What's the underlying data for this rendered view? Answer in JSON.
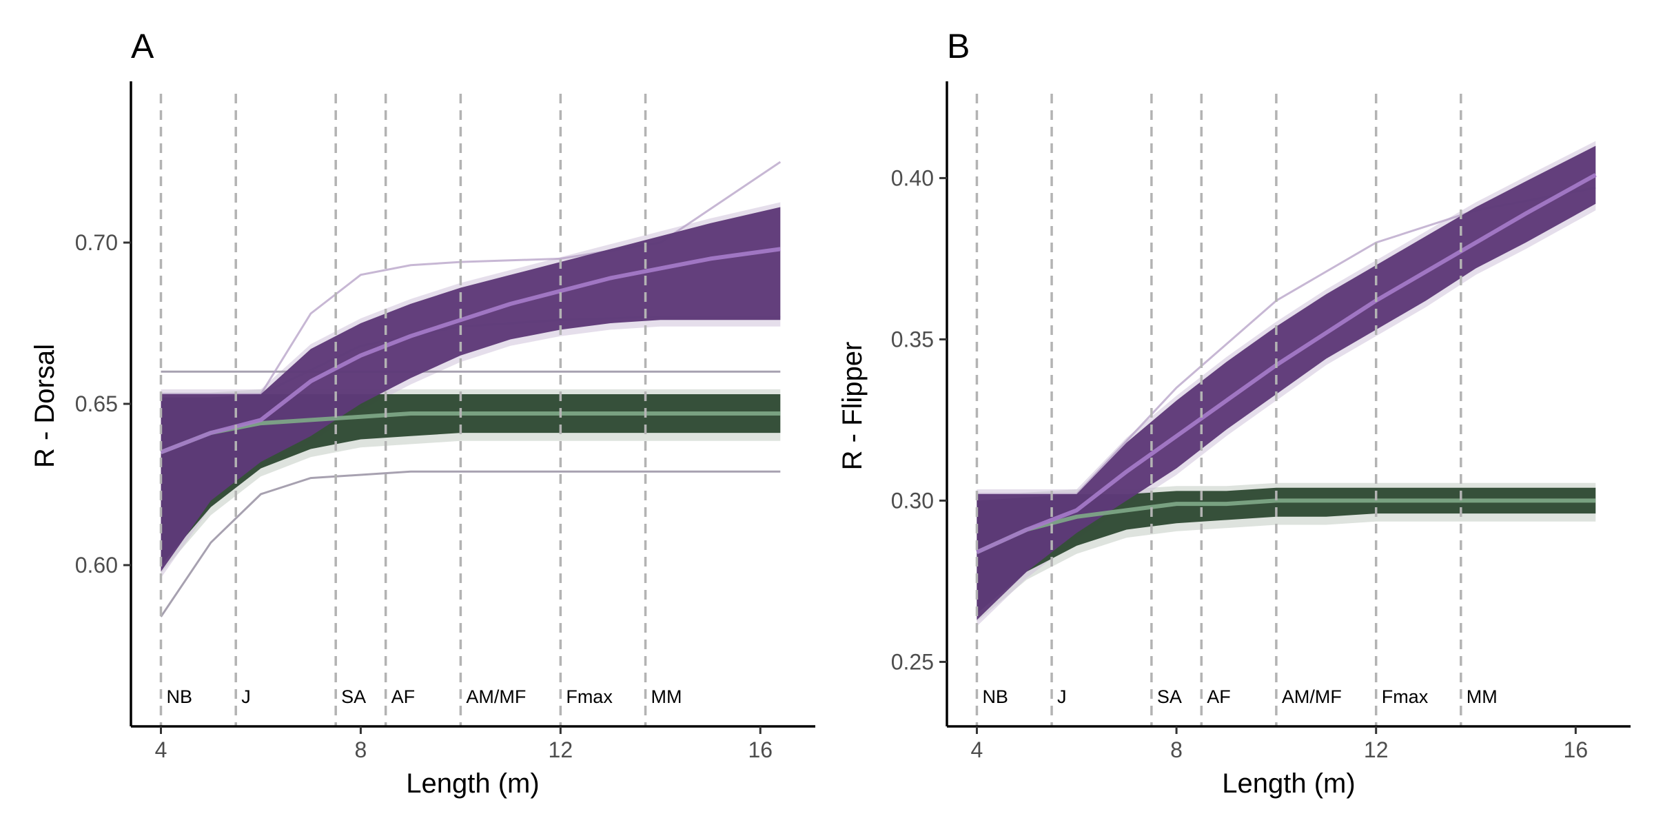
{
  "colors": {
    "purple_band": "#5e3a78",
    "purple_line": "#a57bc9",
    "green_band": "#2f4a33",
    "green_line": "#7fa888",
    "green_pale": "#c3ccc3",
    "grey_line": "#8a8196",
    "vline": "#b3b3b3"
  },
  "chart_data": [
    {
      "panel_label": "A",
      "type": "line",
      "xlabel": "Length (m)",
      "ylabel": "R - Dorsal",
      "xlim": [
        3.4,
        17.1
      ],
      "ylim": [
        0.55,
        0.75
      ],
      "xticks": [
        4,
        8,
        12,
        16
      ],
      "yticks": [
        0.6,
        0.65,
        0.7
      ],
      "ytick_labels": [
        "0.60",
        "0.65",
        "0.70"
      ],
      "grid": false,
      "stage_lines": [
        {
          "label": "NB",
          "x": 4.0
        },
        {
          "label": "J",
          "x": 5.5
        },
        {
          "label": "SA",
          "x": 7.5
        },
        {
          "label": "AF",
          "x": 8.5
        },
        {
          "label": "AM/MF",
          "x": 10.0
        },
        {
          "label": "Fmax",
          "x": 12.0
        },
        {
          "label": "MM",
          "x": 13.7
        }
      ],
      "series": [
        {
          "group": "purple",
          "role": "mean",
          "x": [
            4,
            5,
            6,
            7,
            8,
            9,
            10,
            11,
            12,
            13,
            14,
            15,
            16.4
          ],
          "y": [
            0.635,
            0.641,
            0.645,
            0.657,
            0.665,
            0.671,
            0.676,
            0.681,
            0.685,
            0.689,
            0.692,
            0.695,
            0.698
          ],
          "band_low": [
            0.598,
            0.62,
            0.632,
            0.64,
            0.65,
            0.658,
            0.665,
            0.67,
            0.673,
            0.675,
            0.676,
            0.676,
            0.676
          ],
          "band_high": [
            0.653,
            0.653,
            0.653,
            0.667,
            0.675,
            0.681,
            0.686,
            0.69,
            0.694,
            0.698,
            0.702,
            0.706,
            0.711
          ]
        },
        {
          "group": "green",
          "role": "mean",
          "x": [
            4,
            5,
            6,
            7,
            8,
            9,
            10,
            11,
            12,
            13,
            14,
            15,
            16.4
          ],
          "y": [
            0.635,
            0.641,
            0.644,
            0.645,
            0.646,
            0.647,
            0.647,
            0.647,
            0.647,
            0.647,
            0.647,
            0.647,
            0.647
          ],
          "band_low": [
            0.6,
            0.618,
            0.63,
            0.636,
            0.639,
            0.64,
            0.641,
            0.641,
            0.641,
            0.641,
            0.641,
            0.641,
            0.641
          ],
          "band_high": [
            0.652,
            0.652,
            0.653,
            0.653,
            0.653,
            0.653,
            0.653,
            0.653,
            0.653,
            0.653,
            0.653,
            0.653,
            0.653
          ]
        },
        {
          "group": "grey",
          "role": "outlier",
          "x": [
            4,
            16.4
          ],
          "y": [
            0.66,
            0.66
          ]
        },
        {
          "group": "grey",
          "role": "outlier",
          "x": [
            4,
            5,
            6,
            7,
            8,
            9,
            10,
            12,
            14,
            16.4
          ],
          "y": [
            0.584,
            0.607,
            0.622,
            0.627,
            0.628,
            0.629,
            0.629,
            0.629,
            0.629,
            0.629
          ]
        },
        {
          "group": "purple",
          "role": "outlier",
          "x": [
            4,
            5,
            6,
            7,
            8,
            9,
            10,
            12,
            14,
            16.4
          ],
          "y": [
            0.653,
            0.653,
            0.653,
            0.678,
            0.69,
            0.693,
            0.694,
            0.695,
            0.7,
            0.725
          ]
        },
        {
          "group": "purple",
          "role": "outlier",
          "x": [
            4,
            6,
            8,
            10,
            12,
            14,
            16.4
          ],
          "y": [
            0.653,
            0.653,
            0.668,
            0.674,
            0.676,
            0.677,
            0.677
          ]
        }
      ]
    },
    {
      "panel_label": "B",
      "type": "line",
      "xlabel": "Length (m)",
      "ylabel": "R - Flipper",
      "xlim": [
        3.4,
        17.1
      ],
      "ylim": [
        0.23,
        0.43
      ],
      "xticks": [
        4,
        8,
        12,
        16
      ],
      "yticks": [
        0.25,
        0.3,
        0.35,
        0.4
      ],
      "ytick_labels": [
        "0.25",
        "0.30",
        "0.35",
        "0.40"
      ],
      "grid": false,
      "stage_lines": [
        {
          "label": "NB",
          "x": 4.0
        },
        {
          "label": "J",
          "x": 5.5
        },
        {
          "label": "SA",
          "x": 7.5
        },
        {
          "label": "AF",
          "x": 8.5
        },
        {
          "label": "AM/MF",
          "x": 10.0
        },
        {
          "label": "Fmax",
          "x": 12.0
        },
        {
          "label": "MM",
          "x": 13.7
        }
      ],
      "series": [
        {
          "group": "purple",
          "role": "mean",
          "x": [
            4,
            5,
            6,
            7,
            8,
            9,
            10,
            11,
            12,
            13,
            14,
            15,
            16.4
          ],
          "y": [
            0.284,
            0.291,
            0.297,
            0.309,
            0.32,
            0.331,
            0.342,
            0.352,
            0.362,
            0.371,
            0.38,
            0.389,
            0.401
          ],
          "band_low": [
            0.263,
            0.278,
            0.29,
            0.3,
            0.31,
            0.322,
            0.333,
            0.344,
            0.353,
            0.362,
            0.372,
            0.38,
            0.392
          ],
          "band_high": [
            0.302,
            0.302,
            0.302,
            0.318,
            0.331,
            0.343,
            0.354,
            0.364,
            0.373,
            0.382,
            0.391,
            0.399,
            0.41
          ]
        },
        {
          "group": "green",
          "role": "mean",
          "x": [
            4,
            5,
            6,
            7,
            8,
            9,
            10,
            11,
            12,
            13,
            14,
            15,
            16.4
          ],
          "y": [
            0.284,
            0.291,
            0.295,
            0.297,
            0.299,
            0.299,
            0.3,
            0.3,
            0.3,
            0.3,
            0.3,
            0.3,
            0.3
          ],
          "band_low": [
            0.265,
            0.278,
            0.286,
            0.291,
            0.293,
            0.294,
            0.295,
            0.295,
            0.296,
            0.296,
            0.296,
            0.296,
            0.296
          ],
          "band_high": [
            0.3,
            0.301,
            0.302,
            0.302,
            0.303,
            0.303,
            0.304,
            0.304,
            0.304,
            0.304,
            0.304,
            0.304,
            0.304
          ]
        },
        {
          "group": "purple",
          "role": "outlier",
          "x": [
            4,
            6,
            8,
            10,
            12,
            14,
            16.4
          ],
          "y": [
            0.302,
            0.302,
            0.335,
            0.362,
            0.38,
            0.39,
            0.397
          ]
        }
      ]
    }
  ]
}
